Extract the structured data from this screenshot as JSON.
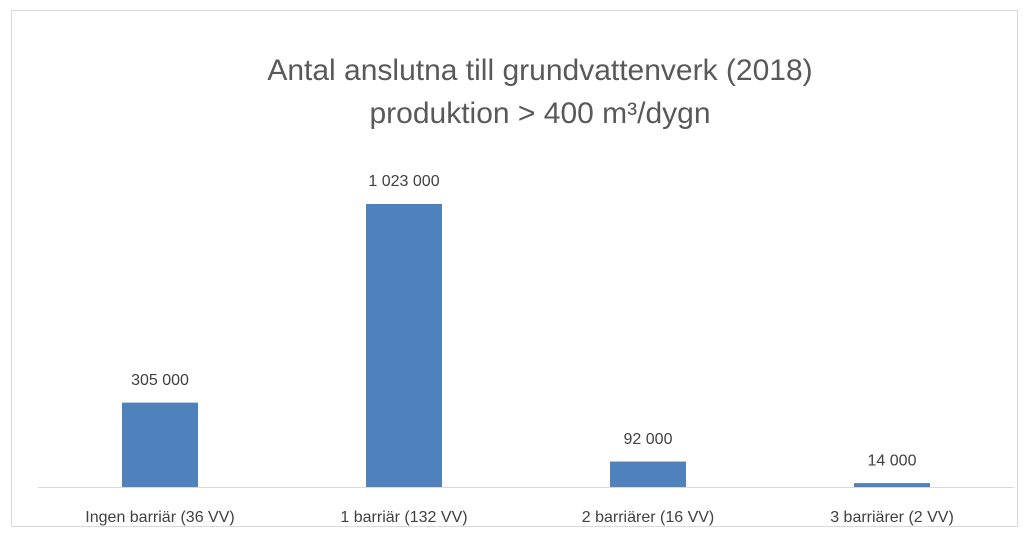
{
  "chart_data": {
    "type": "bar",
    "title": [
      "Antal anslutna till grundvattenverk (2018)",
      "produktion > 400 m³/dygn"
    ],
    "categories": [
      "Ingen barriär (36 VV)",
      "1 barriär (132 VV)",
      "2 barriärer (16 VV)",
      "3 barriärer (2 VV)"
    ],
    "values": [
      305000,
      1023000,
      92000,
      14000
    ],
    "value_labels": [
      "305 000",
      "1 023 000",
      "92 000",
      "14 000"
    ],
    "color": "#4f81bd",
    "ylim": [
      0,
      1200000
    ]
  }
}
